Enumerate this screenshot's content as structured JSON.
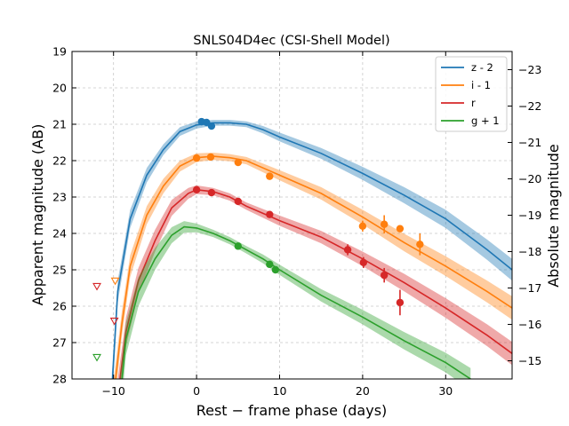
{
  "chart_data": {
    "type": "line",
    "title": "SNLS04D4ec (CSI-Shell Model)",
    "xlabel": "Rest − frame phase (days)",
    "ylabel": "Apparent magnitude (AB)",
    "ylabel_right": "Absolute magnitude",
    "xlim": [
      -15,
      38
    ],
    "ylim": [
      28,
      19
    ],
    "ylim_right_offset": -42.5,
    "x_ticks": [
      -10,
      0,
      10,
      20,
      30
    ],
    "x_tick_labels": [
      "−10",
      "0",
      "10",
      "20",
      "30"
    ],
    "y_ticks": [
      19,
      20,
      21,
      22,
      23,
      24,
      25,
      26,
      27,
      28
    ],
    "y_tick_labels": [
      "19",
      "20",
      "21",
      "22",
      "23",
      "24",
      "25",
      "26",
      "27",
      "28"
    ],
    "y_right_ticks": [
      -23,
      -22,
      -21,
      -20,
      -19,
      -18,
      -17,
      -16,
      -15
    ],
    "y_right_tick_labels": [
      "−23",
      "−22",
      "−21",
      "−20",
      "−19",
      "−18",
      "−17",
      "−16",
      "−15"
    ],
    "grid": true,
    "legend_position": "top-right",
    "series": [
      {
        "name": "z - 2",
        "color": "#1f77b4",
        "model": [
          [
            -10.2,
            28.3
          ],
          [
            -9.5,
            25.6
          ],
          [
            -8,
            23.6
          ],
          [
            -6,
            22.4
          ],
          [
            -4,
            21.7
          ],
          [
            -2,
            21.2
          ],
          [
            0,
            21.02
          ],
          [
            2,
            20.96
          ],
          [
            4,
            20.96
          ],
          [
            6,
            21.0
          ],
          [
            8,
            21.15
          ],
          [
            10,
            21.35
          ],
          [
            15,
            21.8
          ],
          [
            20,
            22.35
          ],
          [
            25,
            22.95
          ],
          [
            30,
            23.6
          ],
          [
            35,
            24.45
          ],
          [
            38,
            25.0
          ]
        ],
        "band_halfwidth": [
          0.45,
          0.3,
          0.25,
          0.2,
          0.15,
          0.12,
          0.1,
          0.08,
          0.08,
          0.08,
          0.1,
          0.12,
          0.15,
          0.18,
          0.22,
          0.25,
          0.28,
          0.3
        ],
        "points": [
          {
            "x": 0.6,
            "y": 20.93,
            "err": 0.05
          },
          {
            "x": 1.2,
            "y": 20.95,
            "err": 0.05
          },
          {
            "x": 1.8,
            "y": 21.05,
            "err": 0.06
          }
        ],
        "upper_limits": []
      },
      {
        "name": "i - 1",
        "color": "#ff7f0e",
        "model": [
          [
            -10,
            28.5
          ],
          [
            -9,
            26.5
          ],
          [
            -8,
            24.9
          ],
          [
            -6,
            23.5
          ],
          [
            -4,
            22.7
          ],
          [
            -2,
            22.15
          ],
          [
            0,
            21.92
          ],
          [
            2,
            21.88
          ],
          [
            4,
            21.92
          ],
          [
            6,
            22.0
          ],
          [
            8,
            22.2
          ],
          [
            10,
            22.4
          ],
          [
            15,
            22.9
          ],
          [
            20,
            23.55
          ],
          [
            25,
            24.25
          ],
          [
            30,
            24.9
          ],
          [
            35,
            25.6
          ],
          [
            38,
            26.05
          ]
        ],
        "band_halfwidth": [
          0.45,
          0.35,
          0.3,
          0.25,
          0.2,
          0.15,
          0.12,
          0.1,
          0.1,
          0.1,
          0.12,
          0.14,
          0.17,
          0.2,
          0.24,
          0.27,
          0.3,
          0.32
        ],
        "points": [
          {
            "x": 0.0,
            "y": 21.93,
            "err": 0.05
          },
          {
            "x": 1.7,
            "y": 21.9,
            "err": 0.05
          },
          {
            "x": 5.0,
            "y": 22.05,
            "err": 0.05
          },
          {
            "x": 8.8,
            "y": 22.43,
            "err": 0.06
          },
          {
            "x": 20.0,
            "y": 23.8,
            "err": 0.15
          },
          {
            "x": 22.6,
            "y": 23.75,
            "err": 0.25
          },
          {
            "x": 24.5,
            "y": 23.87,
            "err": 0.08
          },
          {
            "x": 26.9,
            "y": 24.3,
            "err": 0.3
          }
        ],
        "upper_limits": [
          {
            "x": -9.8,
            "y": 25.3
          }
        ]
      },
      {
        "name": "r",
        "color": "#d62728",
        "model": [
          [
            -9.5,
            28.5
          ],
          [
            -8.5,
            26.7
          ],
          [
            -7,
            25.3
          ],
          [
            -5,
            24.2
          ],
          [
            -3,
            23.3
          ],
          [
            -1,
            22.9
          ],
          [
            0,
            22.8
          ],
          [
            2,
            22.85
          ],
          [
            4,
            23.0
          ],
          [
            6,
            23.25
          ],
          [
            8,
            23.45
          ],
          [
            10,
            23.65
          ],
          [
            15,
            24.1
          ],
          [
            20,
            24.7
          ],
          [
            25,
            25.35
          ],
          [
            30,
            26.05
          ],
          [
            35,
            26.8
          ],
          [
            38,
            27.3
          ]
        ],
        "band_halfwidth": [
          0.5,
          0.4,
          0.35,
          0.3,
          0.22,
          0.15,
          0.12,
          0.1,
          0.1,
          0.1,
          0.12,
          0.14,
          0.17,
          0.2,
          0.24,
          0.27,
          0.3,
          0.32
        ],
        "points": [
          {
            "x": 0.0,
            "y": 22.8,
            "err": 0.05
          },
          {
            "x": 1.8,
            "y": 22.88,
            "err": 0.05
          },
          {
            "x": 5.0,
            "y": 23.12,
            "err": 0.05
          },
          {
            "x": 8.8,
            "y": 23.48,
            "err": 0.06
          },
          {
            "x": 18.2,
            "y": 24.45,
            "err": 0.15
          },
          {
            "x": 20.1,
            "y": 24.8,
            "err": 0.15
          },
          {
            "x": 22.6,
            "y": 25.15,
            "err": 0.2
          },
          {
            "x": 24.5,
            "y": 25.9,
            "err": 0.35
          }
        ],
        "upper_limits": [
          {
            "x": -12,
            "y": 25.45
          },
          {
            "x": -9.9,
            "y": 26.4
          }
        ]
      },
      {
        "name": "g + 1",
        "color": "#2ca02c",
        "model": [
          [
            -9.2,
            28.5
          ],
          [
            -8.5,
            26.9
          ],
          [
            -7,
            25.6
          ],
          [
            -5,
            24.7
          ],
          [
            -3,
            24.05
          ],
          [
            -1.5,
            23.82
          ],
          [
            0,
            23.85
          ],
          [
            2,
            24.0
          ],
          [
            4,
            24.2
          ],
          [
            6,
            24.45
          ],
          [
            8,
            24.7
          ],
          [
            10,
            25.0
          ],
          [
            15,
            25.7
          ],
          [
            20,
            26.3
          ],
          [
            25,
            26.95
          ],
          [
            30,
            27.55
          ],
          [
            33,
            28.0
          ]
        ],
        "band_halfwidth": [
          0.6,
          0.45,
          0.4,
          0.3,
          0.22,
          0.16,
          0.12,
          0.1,
          0.1,
          0.1,
          0.12,
          0.14,
          0.17,
          0.2,
          0.24,
          0.27,
          0.3
        ],
        "points": [
          {
            "x": 5.0,
            "y": 24.35,
            "err": 0.05
          },
          {
            "x": 8.8,
            "y": 24.85,
            "err": 0.06
          },
          {
            "x": 9.5,
            "y": 25.0,
            "err": 0.06
          }
        ],
        "upper_limits": [
          {
            "x": -12,
            "y": 27.4
          }
        ]
      }
    ]
  }
}
